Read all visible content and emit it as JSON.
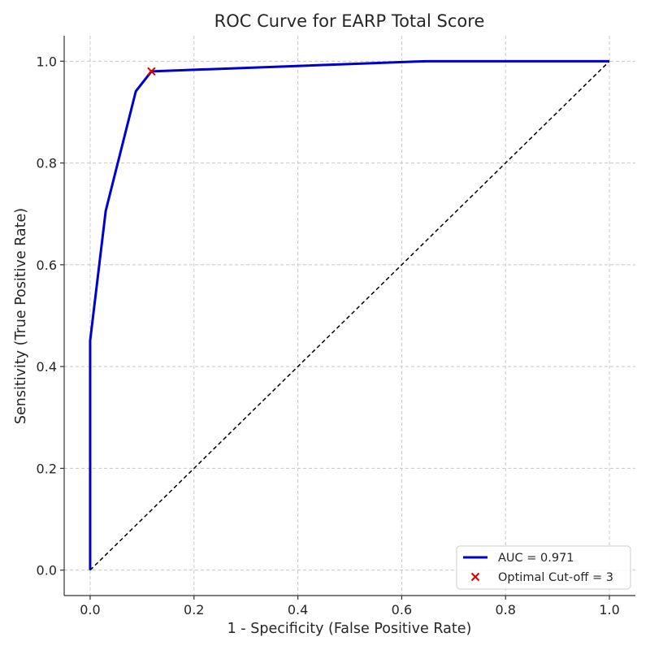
{
  "chart_data": {
    "type": "line",
    "title": "ROC Curve for EARP Total Score",
    "xlabel": "1 - Specificity (False Positive Rate)",
    "ylabel": "Sensitivity (True Positive Rate)",
    "xlim": [
      -0.05,
      1.05
    ],
    "ylim": [
      -0.05,
      1.05
    ],
    "xticks": [
      0.0,
      0.2,
      0.4,
      0.6,
      0.8,
      1.0
    ],
    "yticks": [
      0.0,
      0.2,
      0.4,
      0.6,
      0.8,
      1.0
    ],
    "xtick_labels": [
      "0.0",
      "0.2",
      "0.4",
      "0.6",
      "0.8",
      "1.0"
    ],
    "ytick_labels": [
      "0.0",
      "0.2",
      "0.4",
      "0.6",
      "0.8",
      "1.0"
    ],
    "grid": true,
    "grid_style": "dashed",
    "legend_position": "lower-right",
    "series": [
      {
        "name": "AUC = 0.971",
        "kind": "line",
        "color": "#0000cc",
        "x": [
          0.0,
          0.0,
          0.03,
          0.088,
          0.118,
          0.647,
          1.0
        ],
        "y": [
          0.0,
          0.451,
          0.706,
          0.941,
          0.98,
          1.0,
          1.0
        ]
      },
      {
        "kind": "reference-diagonal",
        "color": "#000000",
        "style": "dashed",
        "x": [
          0.0,
          1.0
        ],
        "y": [
          0.0,
          1.0
        ]
      },
      {
        "name": "Optimal Cut-off = 3",
        "kind": "marker",
        "marker": "x",
        "color": "#dd0000",
        "x": [
          0.118
        ],
        "y": [
          0.98
        ]
      }
    ]
  }
}
